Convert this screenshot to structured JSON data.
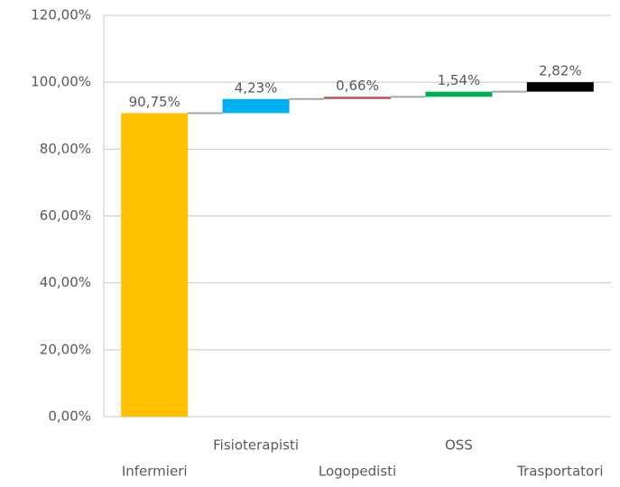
{
  "chart_data": {
    "type": "waterfall",
    "categories": [
      "Infermieri",
      "Fisioterapisti",
      "Logopedisti",
      "OSS",
      "Trasportatori"
    ],
    "values": [
      90.75,
      4.23,
      0.66,
      1.54,
      2.82
    ],
    "value_labels": [
      "90,75%",
      "4,23%",
      "0,66%",
      "1,54%",
      "2,82%"
    ],
    "colors": [
      "#ffc000",
      "#00b0f0",
      "#c0504d",
      "#00b050",
      "#000000"
    ],
    "ylim": [
      0,
      120
    ],
    "yticks": [
      {
        "value": 0,
        "label": "0,00%"
      },
      {
        "value": 20,
        "label": "20,00%"
      },
      {
        "value": 40,
        "label": "40,00%"
      },
      {
        "value": 60,
        "label": "60,00%"
      },
      {
        "value": 80,
        "label": "80,00%"
      },
      {
        "value": 100,
        "label": "100,00%"
      },
      {
        "value": 120,
        "label": "120,00%"
      }
    ],
    "grid": true
  }
}
